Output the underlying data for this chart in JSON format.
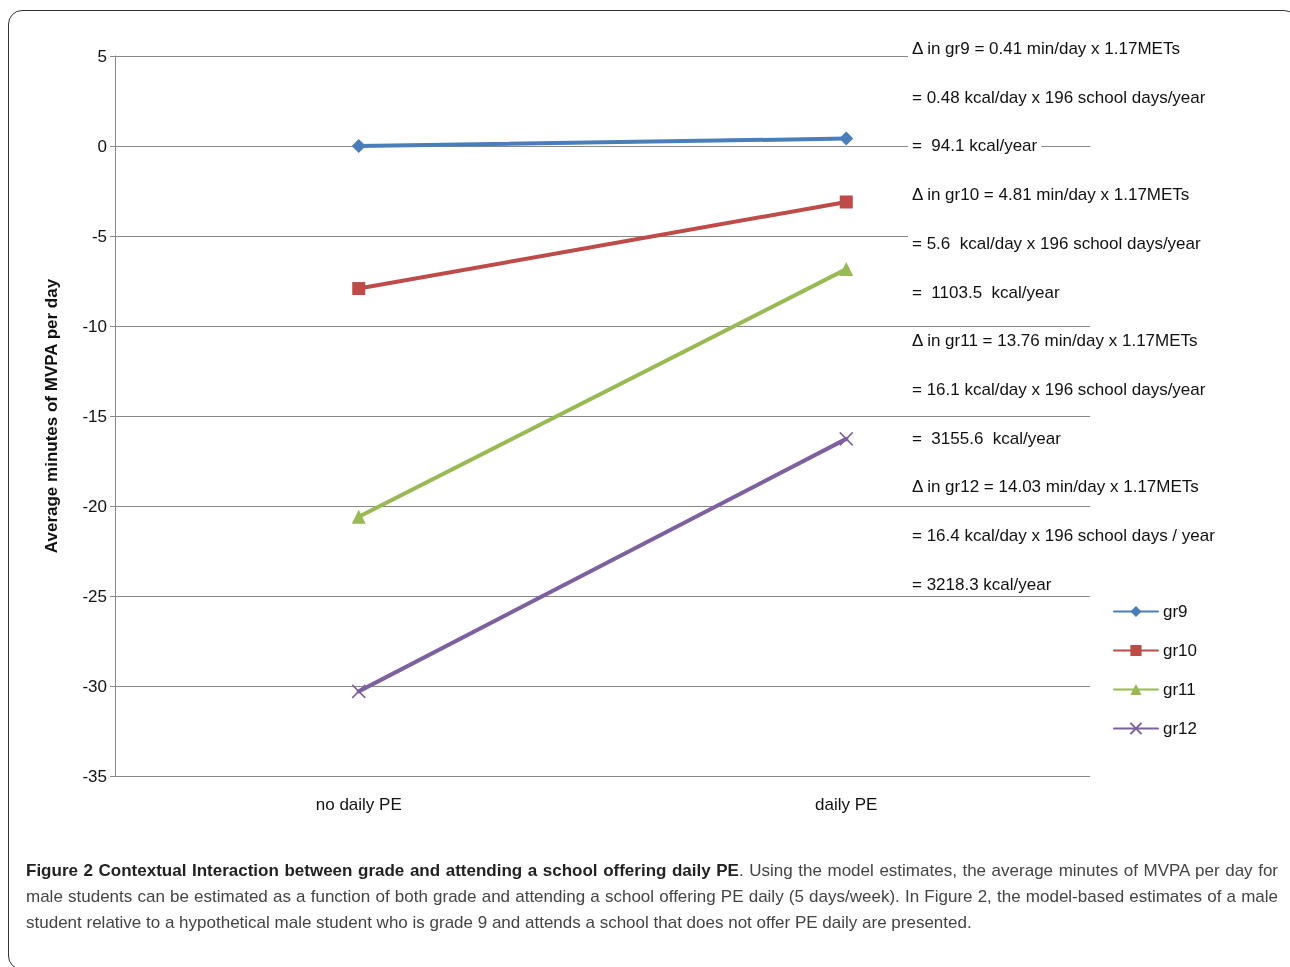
{
  "chart_data": {
    "type": "line",
    "title": "Figure 2 Contextual Interaction between grade and attending a school offering daily PE",
    "ylabel": "Average minutes of MVPA per day",
    "categories": [
      "no daily PE",
      "daily PE"
    ],
    "series": [
      {
        "name": "gr9",
        "color": "#4a7ebb",
        "marker": "diamond",
        "values": [
          0,
          0.41
        ]
      },
      {
        "name": "gr10",
        "color": "#be4b48",
        "marker": "square",
        "values": [
          -7.92,
          -3.11
        ]
      },
      {
        "name": "gr11",
        "color": "#98b954",
        "marker": "triangle",
        "values": [
          -20.6,
          -6.84
        ]
      },
      {
        "name": "gr12",
        "color": "#7d60a0",
        "marker": "cross",
        "values": [
          -30.3,
          -16.27
        ]
      }
    ],
    "ylim": [
      -35,
      5
    ],
    "yticks": [
      -35,
      -30,
      -25,
      -20,
      -15,
      -10,
      -5,
      0,
      5
    ],
    "grid": "y",
    "legend": "right",
    "line_style": "solid",
    "annotations": [
      "Δ in gr9 = 0.41 min/day x 1.17METs",
      "= 0.48 kcal/day x 196 school days/year",
      "=  94.1 kcal/year",
      "Δ in gr10 = 4.81 min/day x 1.17METs",
      "= 5.6  kcal/day x 196 school days/year",
      "=  1103.5  kcal/year",
      "Δ in gr11 = 13.76 min/day x 1.17METs",
      "= 16.1 kcal/day x 196 school days/year",
      "=  3155.6  kcal/year",
      "Δ in gr12 = 14.03 min/day x 1.17METs",
      "= 16.4 kcal/day x 196 school days / year",
      "= 3218.3 kcal/year",
      ". Using the model estimates, the average minutes of MVPA per day for male students can be estimated as a function of both grade and attending a school offering PE daily (5 days/week). In Figure 2, the model-based estimates of a male student relative to a hypothetical male student who is grade 9 and attends a school that does not offer PE daily are presented."
    ]
  }
}
